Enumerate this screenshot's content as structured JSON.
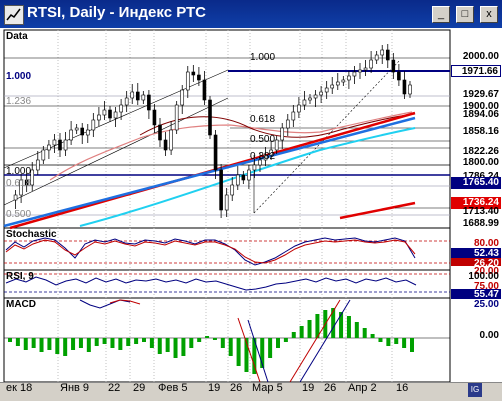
{
  "window": {
    "title": "RTSI, Daily - Индекс РТС"
  },
  "titlebar_buttons": {
    "minimize": "_",
    "maximize": "□",
    "close": "x"
  },
  "panels": {
    "price": {
      "label": "Data"
    },
    "stochastic": {
      "label": "Stochastic"
    },
    "rsi": {
      "label": "RSI, 9"
    },
    "macd": {
      "label": "MACD"
    }
  },
  "price_axis": {
    "top": "2000.00",
    "current": "1971.66",
    "l1": "1929.67",
    "l2": "1900.00",
    "l3": "1894.06",
    "l4": "1858.16",
    "l5": "1822.26",
    "l6": "1800.00",
    "l7": "1786.24",
    "l8": "1765.40",
    "l9": "1736.24",
    "l10": "1713.40",
    "l11": "1688.99"
  },
  "fib_labels": {
    "f1": "1.000",
    "f2": "1.000",
    "f3": "1.236",
    "f4": "1.000",
    "f5": "0.618",
    "f6": "0.618",
    "f7": "0.500",
    "f8": "0.382",
    "f9": "0.500"
  },
  "stoch_axis": {
    "a": "80.00",
    "b": "52.43",
    "c": "26.20",
    "d": "20.00"
  },
  "rsi_axis": {
    "a": "100.00",
    "b": "75.00",
    "c": "55.47",
    "d": "25.00"
  },
  "macd_axis": {
    "a": "0.00"
  },
  "date_labels": [
    "ек 18",
    "Янв 9",
    "22",
    "29",
    "Фев 5",
    "19",
    "26",
    "Мар 5",
    "19",
    "26",
    "Апр 2",
    "16"
  ],
  "colors": {
    "titlebar": "#0a2a8a",
    "candle": "#000000",
    "red_ma": "#e00000",
    "blue_trend": "#1e6fe0",
    "cyan_ma": "#20d0f0",
    "navy": "#000080",
    "macd_bars": "#00a000"
  }
}
